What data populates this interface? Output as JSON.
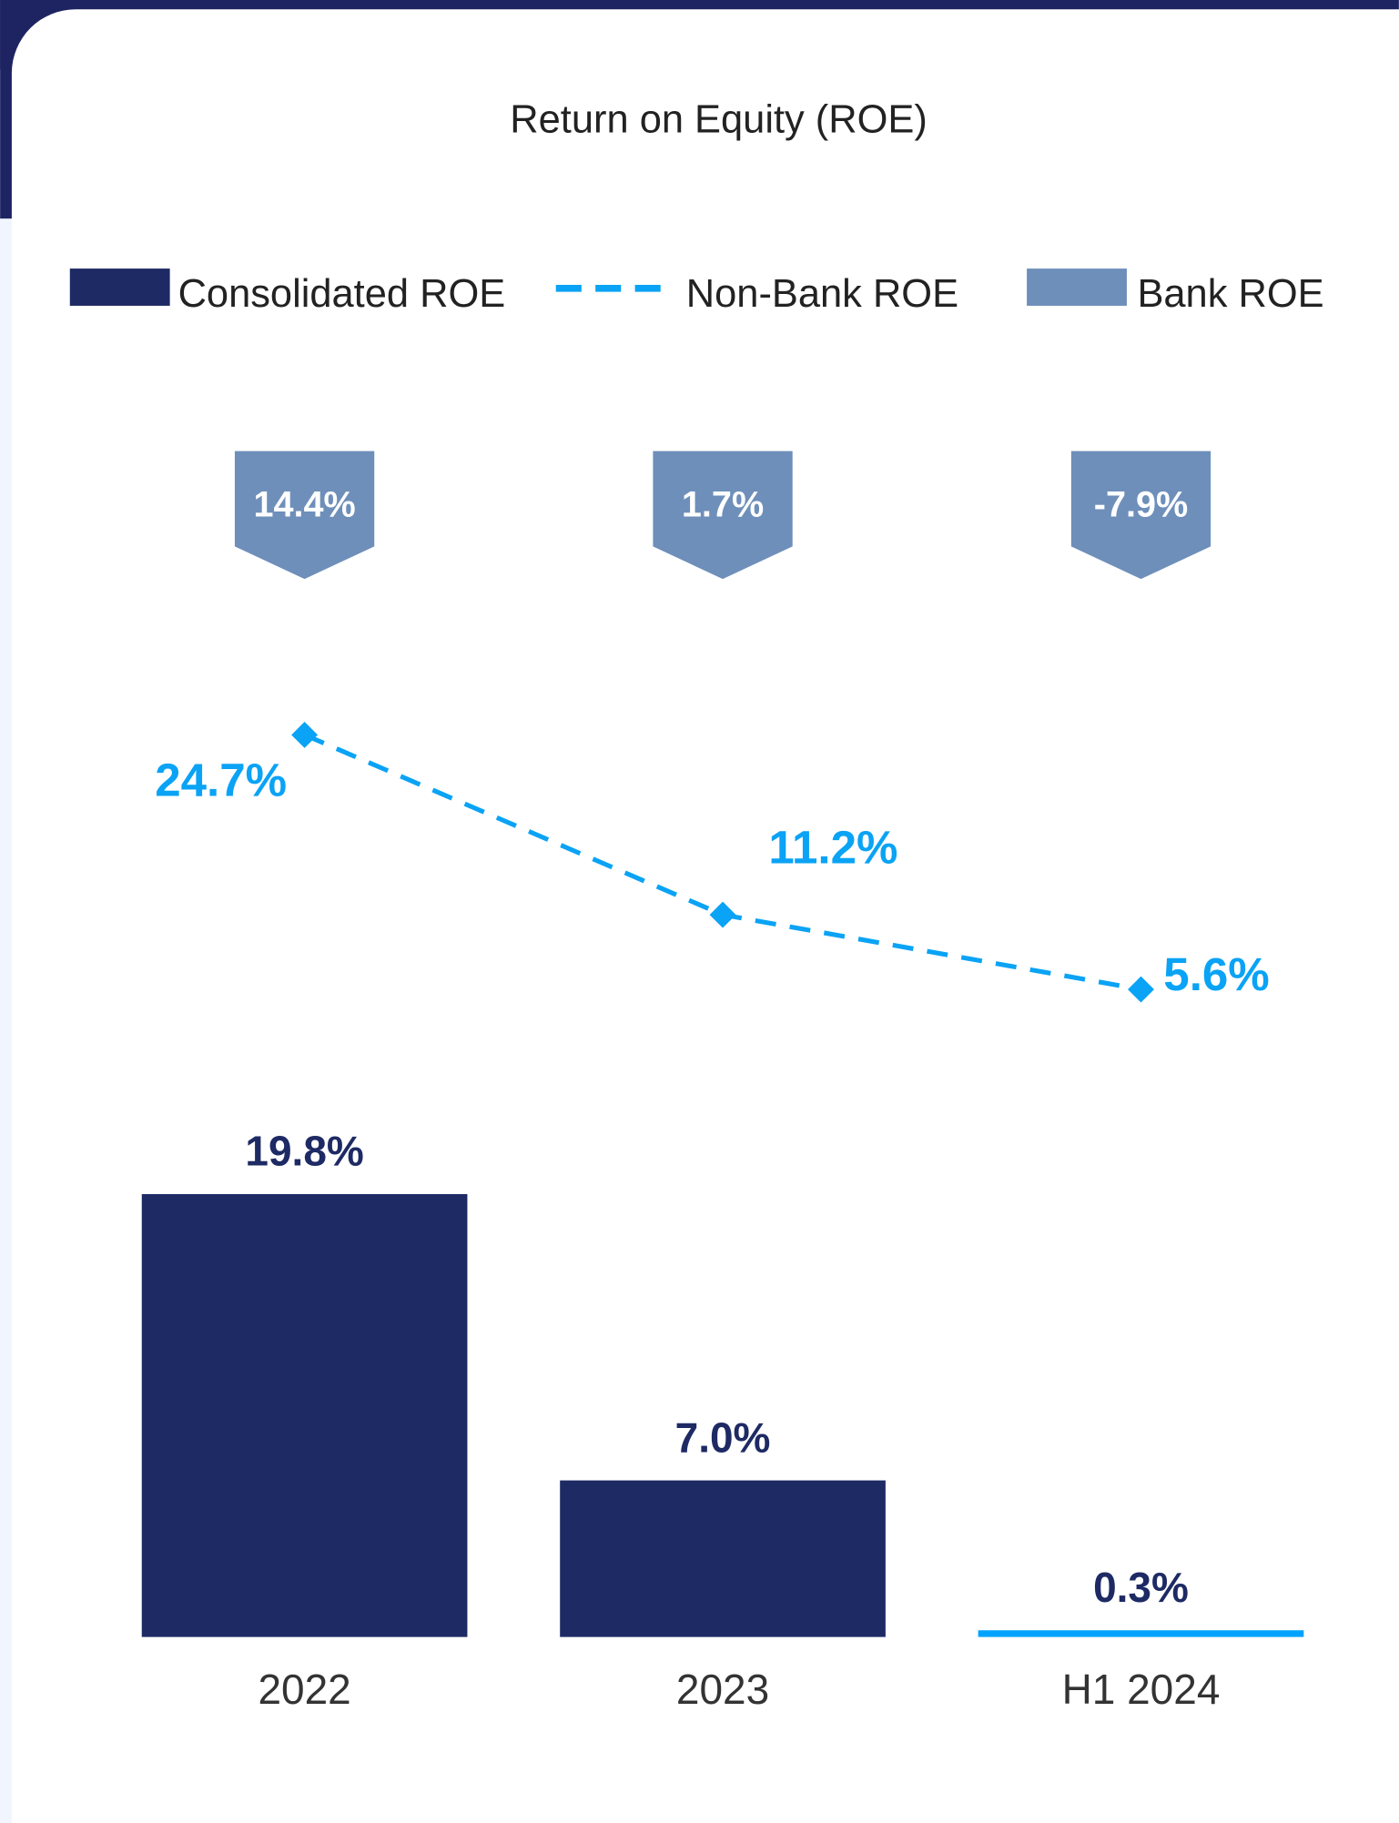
{
  "chart_data": {
    "type": "combo",
    "title": "Return on Equity (ROE)",
    "categories": [
      "2022",
      "2023",
      "H1 2024"
    ],
    "ylim": [
      0,
      42
    ],
    "y2lim": [
      -43,
      27.5
    ],
    "series": [
      {
        "name": "Consolidated ROE",
        "type": "bar",
        "color": "#1e2a64",
        "colors": [
          "#1e2a64",
          "#1e2a64",
          "#00a3ff"
        ],
        "values": [
          19.8,
          7.0,
          0.3
        ],
        "value_labels": [
          "19.8%",
          "7.0%",
          "0.3%"
        ]
      },
      {
        "name": "Non-Bank ROE",
        "type": "line",
        "axis": "y2",
        "color": "#0aa3f5",
        "line_style": "dashed",
        "values": [
          24.7,
          11.2,
          5.6
        ],
        "value_labels": [
          "24.7%",
          "11.2%",
          "5.6%"
        ]
      },
      {
        "name": "Bank ROE",
        "type": "badge",
        "color": "#6e8fba",
        "values": [
          14.4,
          1.7,
          -7.9
        ],
        "value_labels": [
          "14.4%",
          "1.7%",
          "-7.9%"
        ]
      }
    ]
  }
}
